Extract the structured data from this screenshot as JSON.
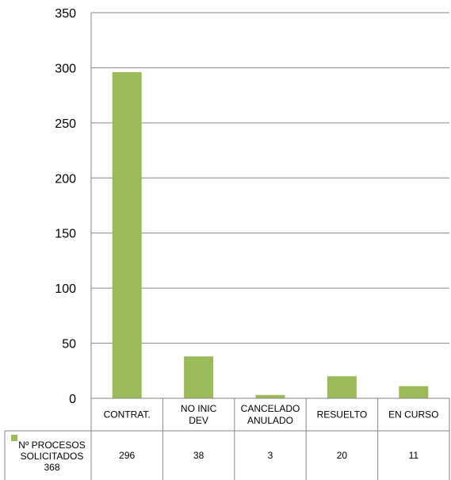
{
  "chart_data": {
    "type": "bar",
    "categories": [
      [
        "CONTRAT."
      ],
      [
        "NO INIC",
        "DEV"
      ],
      [
        "CANCELADO",
        "ANULADO"
      ],
      [
        "RESUELTO"
      ],
      [
        "EN CURSO"
      ]
    ],
    "series": [
      {
        "name": [
          "Nº PROCESOS",
          "SOLICITADOS",
          "368"
        ],
        "values": [
          296,
          38,
          3,
          20,
          11
        ],
        "color": "#9bbb59"
      }
    ],
    "ylim": [
      0,
      350
    ],
    "yticks": [
      0,
      50,
      100,
      150,
      200,
      250,
      300,
      350
    ],
    "grid": true,
    "legend": "data-table-left",
    "data_table": true
  }
}
